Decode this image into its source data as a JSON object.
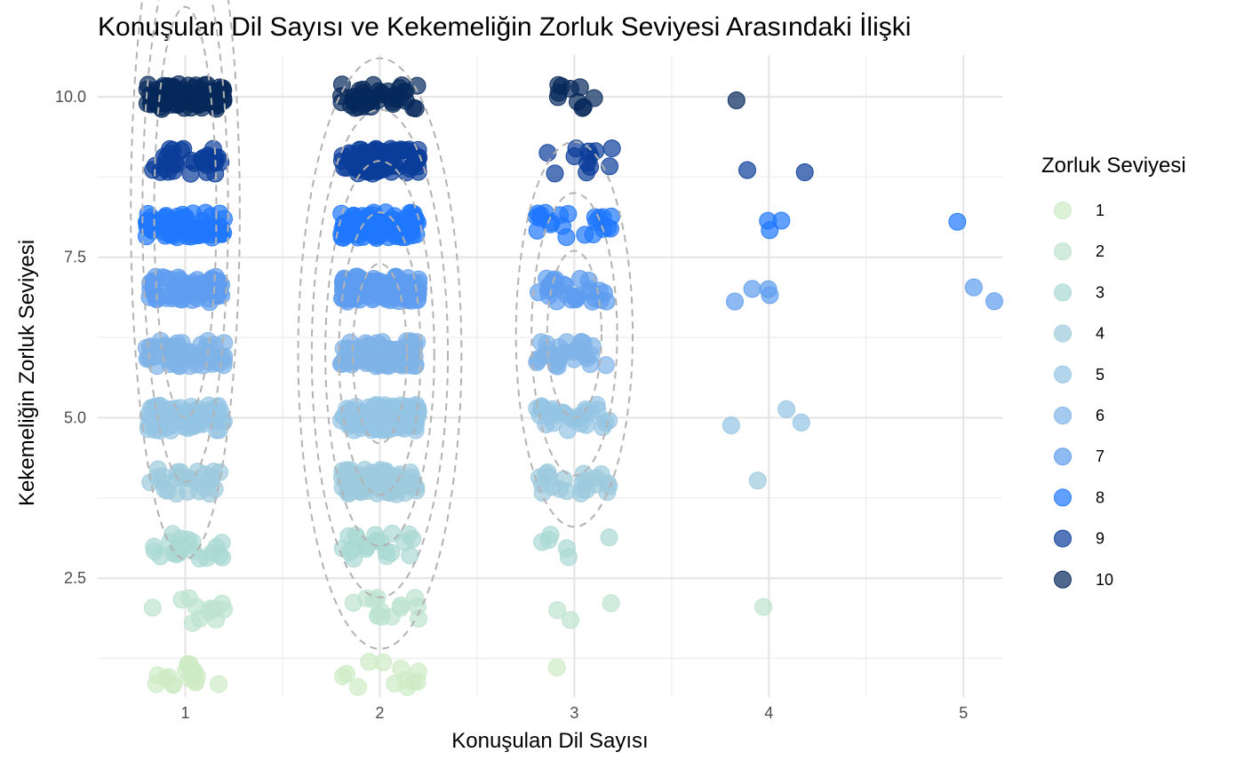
{
  "chart_data": {
    "type": "scatter",
    "title": "Konuşulan Dil Sayısı ve Kekemeliğin Zorluk Seviyesi Arasındaki İlişki",
    "xlabel": "Konuşulan Dil Sayısı",
    "ylabel": "Kekemeliğin Zorluk Seviyesi",
    "xlim": [
      0.55,
      5.2
    ],
    "ylim": [
      0.65,
      10.65
    ],
    "x_ticks": [
      1,
      2,
      3,
      4,
      5
    ],
    "y_ticks": [
      2.5,
      5.0,
      7.5,
      10.0
    ],
    "y_tick_labels": [
      "2.5",
      "5.0",
      "7.5",
      "10.0"
    ],
    "x_tick_labels": [
      "1",
      "2",
      "3",
      "4",
      "5"
    ],
    "grid": true,
    "jitter": {
      "x": 0.2,
      "y": 0.2
    },
    "overlay": "2D density contours (dashed grey)",
    "legend": {
      "title": "Zorluk Seviyesi",
      "position": "right",
      "entries": [
        {
          "label": "1",
          "color": "#cdebc5"
        },
        {
          "label": "2",
          "color": "#bde3cf"
        },
        {
          "label": "3",
          "color": "#aad8d3"
        },
        {
          "label": "4",
          "color": "#9dcbdd"
        },
        {
          "label": "5",
          "color": "#94c4e4"
        },
        {
          "label": "6",
          "color": "#7fb3e8"
        },
        {
          "label": "7",
          "color": "#5e9cf0"
        },
        {
          "label": "8",
          "color": "#1f77ff"
        },
        {
          "label": "9",
          "color": "#0a3d9a"
        },
        {
          "label": "10",
          "color": "#06285a"
        }
      ]
    },
    "counts": [
      {
        "languages": 1,
        "severity": 1,
        "n": 18
      },
      {
        "languages": 1,
        "severity": 2,
        "n": 12
      },
      {
        "languages": 1,
        "severity": 3,
        "n": 22
      },
      {
        "languages": 1,
        "severity": 4,
        "n": 26
      },
      {
        "languages": 1,
        "severity": 5,
        "n": 70
      },
      {
        "languages": 1,
        "severity": 6,
        "n": 60
      },
      {
        "languages": 1,
        "severity": 7,
        "n": 60
      },
      {
        "languages": 1,
        "severity": 8,
        "n": 70
      },
      {
        "languages": 1,
        "severity": 9,
        "n": 34
      },
      {
        "languages": 1,
        "severity": 10,
        "n": 90
      },
      {
        "languages": 2,
        "severity": 1,
        "n": 12
      },
      {
        "languages": 2,
        "severity": 2,
        "n": 14
      },
      {
        "languages": 2,
        "severity": 3,
        "n": 22
      },
      {
        "languages": 2,
        "severity": 4,
        "n": 80
      },
      {
        "languages": 2,
        "severity": 5,
        "n": 120
      },
      {
        "languages": 2,
        "severity": 6,
        "n": 110
      },
      {
        "languages": 2,
        "severity": 7,
        "n": 120
      },
      {
        "languages": 2,
        "severity": 8,
        "n": 100
      },
      {
        "languages": 2,
        "severity": 9,
        "n": 80
      },
      {
        "languages": 2,
        "severity": 10,
        "n": 40
      },
      {
        "languages": 3,
        "severity": 1,
        "n": 1
      },
      {
        "languages": 3,
        "severity": 2,
        "n": 3
      },
      {
        "languages": 3,
        "severity": 3,
        "n": 6
      },
      {
        "languages": 3,
        "severity": 4,
        "n": 22
      },
      {
        "languages": 3,
        "severity": 5,
        "n": 30
      },
      {
        "languages": 3,
        "severity": 6,
        "n": 30
      },
      {
        "languages": 3,
        "severity": 7,
        "n": 30
      },
      {
        "languages": 3,
        "severity": 8,
        "n": 22
      },
      {
        "languages": 3,
        "severity": 9,
        "n": 12
      },
      {
        "languages": 3,
        "severity": 10,
        "n": 10
      },
      {
        "languages": 4,
        "severity": 2,
        "n": 1
      },
      {
        "languages": 4,
        "severity": 4,
        "n": 1
      },
      {
        "languages": 4,
        "severity": 5,
        "n": 3
      },
      {
        "languages": 4,
        "severity": 7,
        "n": 4
      },
      {
        "languages": 4,
        "severity": 8,
        "n": 3
      },
      {
        "languages": 4,
        "severity": 9,
        "n": 2
      },
      {
        "languages": 4,
        "severity": 10,
        "n": 1
      },
      {
        "languages": 5,
        "severity": 7,
        "n": 2
      },
      {
        "languages": 5,
        "severity": 8,
        "n": 1
      }
    ]
  }
}
